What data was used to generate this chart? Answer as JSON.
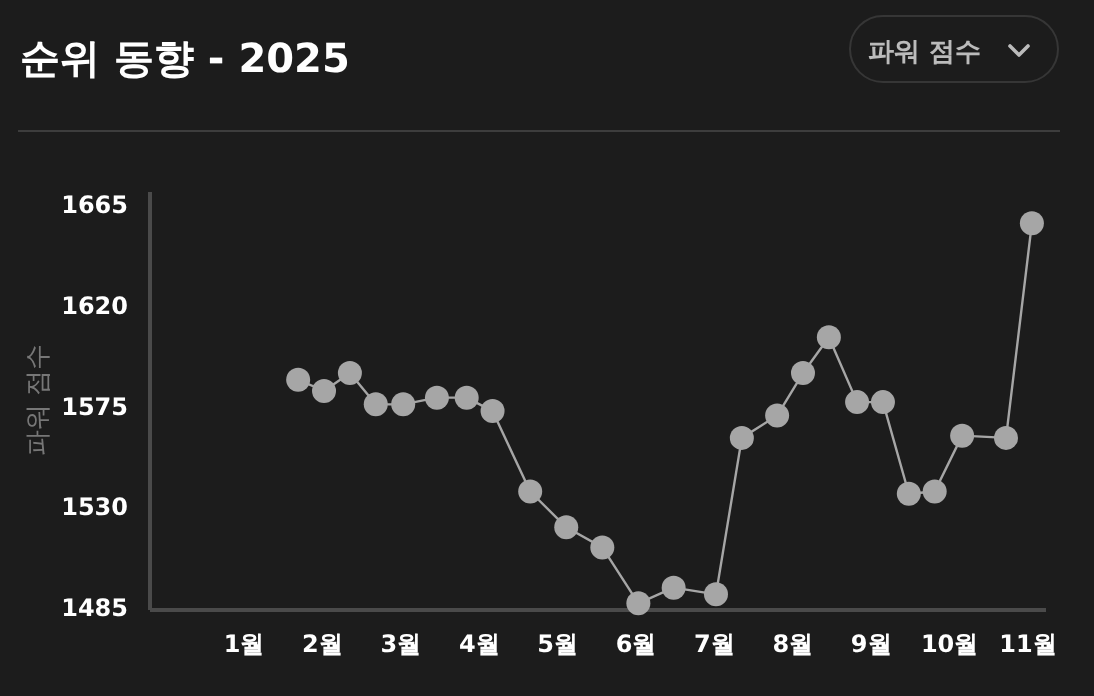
{
  "chart_data": {
    "type": "line",
    "title": "순위 동향 - 2025",
    "ylabel": "파워 점수",
    "annotations": [
      "파워 점수"
    ],
    "x": [
      1.69,
      2.02,
      2.35,
      2.68,
      3.03,
      3.46,
      3.84,
      4.17,
      4.65,
      5.11,
      5.57,
      6.03,
      6.48,
      7.02,
      7.35,
      7.8,
      8.13,
      8.46,
      8.82,
      9.15,
      9.48,
      9.81,
      10.16,
      10.72,
      11.05
    ],
    "series": [
      {
        "color": "#a6a6a6",
        "values": [
          1587,
          1582,
          1590,
          1576,
          1576,
          1579,
          1579,
          1573,
          1537,
          1521,
          1512,
          1487,
          1494,
          1491,
          1561,
          1571,
          1590,
          1606,
          1577,
          1577,
          1536,
          1537,
          1562,
          1561,
          1657
        ]
      }
    ],
    "xlim": [
      -0.2,
      11.23
    ],
    "ylim": [
      1484,
      1671
    ],
    "xticks": [
      {
        "value": 1,
        "label": "1월"
      },
      {
        "value": 2,
        "label": "2월"
      },
      {
        "value": 3,
        "label": "3월"
      },
      {
        "value": 4,
        "label": "4월"
      },
      {
        "value": 5,
        "label": "5월"
      },
      {
        "value": 6,
        "label": "6월"
      },
      {
        "value": 7,
        "label": "7월"
      },
      {
        "value": 8,
        "label": "8월"
      },
      {
        "value": 9,
        "label": "9월"
      },
      {
        "value": 10,
        "label": "10월"
      },
      {
        "value": 11,
        "label": "11월"
      }
    ],
    "yticks": [
      1485,
      1530,
      1575,
      1620,
      1665
    ],
    "marker": "circle",
    "line_style": "solid"
  }
}
